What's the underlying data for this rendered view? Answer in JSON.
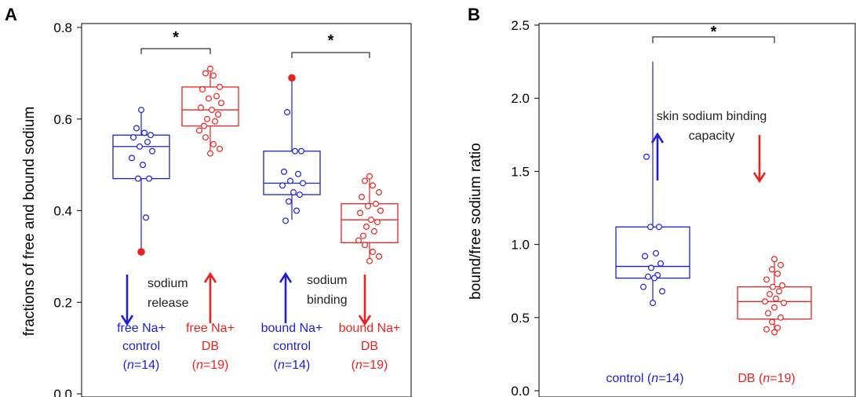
{
  "colors": {
    "control": "#1f1fd6",
    "db": "#e8231f",
    "axis": "#000000"
  },
  "chart_data": [
    {
      "panel_label": "A",
      "type": "box",
      "ylabel": "fractions of free and bound sodium",
      "ylim": [
        0.0,
        0.8
      ],
      "yticks": [
        "0.0",
        "0.2",
        "0.4",
        "0.6",
        "0.8"
      ],
      "yticks_values": [
        0.0,
        0.2,
        0.4,
        0.6,
        0.8
      ],
      "groups": [
        {
          "label_lines": [
            "free Na+",
            "control"
          ],
          "n_prefix": "(",
          "n_var": "n",
          "n_value": "=14)",
          "color_key": "control",
          "q1": 0.47,
          "median": 0.54,
          "q3": 0.565,
          "whisker_low": 0.31,
          "whisker_high": 0.62,
          "outlier_filled": 0.31,
          "points": [
            0.62,
            0.58,
            0.57,
            0.565,
            0.56,
            0.55,
            0.54,
            0.53,
            0.515,
            0.5,
            0.47,
            0.47,
            0.385,
            0.31
          ]
        },
        {
          "label_lines": [
            "free Na+",
            "DB"
          ],
          "n_prefix": "(",
          "n_var": "n",
          "n_value": "=19)",
          "color_key": "db",
          "q1": 0.585,
          "median": 0.62,
          "q3": 0.67,
          "whisker_low": 0.525,
          "whisker_high": 0.71,
          "points": [
            0.71,
            0.7,
            0.695,
            0.67,
            0.665,
            0.65,
            0.645,
            0.635,
            0.625,
            0.62,
            0.61,
            0.6,
            0.595,
            0.585,
            0.575,
            0.56,
            0.545,
            0.535,
            0.525
          ]
        },
        {
          "label_lines": [
            "bound Na+",
            "control"
          ],
          "n_prefix": "(",
          "n_var": "n",
          "n_value": "=14)",
          "color_key": "control",
          "q1": 0.435,
          "median": 0.46,
          "q3": 0.53,
          "whisker_low": 0.38,
          "whisker_high": 0.69,
          "outlier_filled": 0.69,
          "points": [
            0.69,
            0.615,
            0.53,
            0.53,
            0.485,
            0.48,
            0.465,
            0.46,
            0.455,
            0.44,
            0.435,
            0.42,
            0.4,
            0.378
          ]
        },
        {
          "label_lines": [
            "bound Na+",
            "DB"
          ],
          "n_prefix": "(",
          "n_var": "n",
          "n_value": "=19)",
          "color_key": "db",
          "q1": 0.33,
          "median": 0.38,
          "q3": 0.415,
          "whisker_low": 0.29,
          "whisker_high": 0.475,
          "points": [
            0.475,
            0.465,
            0.455,
            0.44,
            0.43,
            0.415,
            0.41,
            0.4,
            0.395,
            0.38,
            0.375,
            0.365,
            0.355,
            0.345,
            0.335,
            0.325,
            0.31,
            0.3,
            0.29
          ]
        }
      ],
      "significance": [
        {
          "groups": [
            0,
            1
          ],
          "text": "*"
        },
        {
          "groups": [
            2,
            3
          ],
          "text": "*"
        }
      ],
      "annotations": {
        "left": [
          "sodium",
          "release"
        ],
        "right": [
          "sodium",
          "binding"
        ]
      },
      "arrows": [
        {
          "group": 0,
          "dir": "down",
          "color_key": "control"
        },
        {
          "group": 1,
          "dir": "up",
          "color_key": "db"
        },
        {
          "group": 2,
          "dir": "up",
          "color_key": "control"
        },
        {
          "group": 3,
          "dir": "down",
          "color_key": "db"
        }
      ]
    },
    {
      "panel_label": "B",
      "type": "box",
      "ylabel": "bound/free  sodium  ratio",
      "ylim": [
        0.0,
        2.5
      ],
      "yticks": [
        "0.0",
        "0.5",
        "1.0",
        "1.5",
        "2.0",
        "2.5"
      ],
      "yticks_values": [
        0.0,
        0.5,
        1.0,
        1.5,
        2.0,
        2.5
      ],
      "groups": [
        {
          "label_prefix": "control (",
          "n_var": "n",
          "n_value": "=14)",
          "color_key": "control",
          "q1": 0.77,
          "median": 0.85,
          "q3": 1.12,
          "whisker_low": 0.6,
          "whisker_high": 2.25,
          "outlier_square": 2.25,
          "points": [
            1.6,
            1.12,
            1.12,
            0.94,
            0.92,
            0.87,
            0.84,
            0.79,
            0.78,
            0.77,
            0.71,
            0.68,
            0.6
          ]
        },
        {
          "label_prefix": "DB (",
          "n_var": "n",
          "n_value": "=19)",
          "color_key": "db",
          "q1": 0.49,
          "median": 0.61,
          "q3": 0.71,
          "whisker_low": 0.4,
          "whisker_high": 0.9,
          "points": [
            0.9,
            0.86,
            0.83,
            0.8,
            0.76,
            0.72,
            0.71,
            0.68,
            0.66,
            0.63,
            0.61,
            0.6,
            0.57,
            0.53,
            0.5,
            0.47,
            0.43,
            0.42,
            0.4
          ]
        }
      ],
      "significance": [
        {
          "groups": [
            0,
            1
          ],
          "text": "*"
        }
      ],
      "annotations": {
        "center": [
          "skin sodium binding",
          "capacity"
        ]
      },
      "arrows": [
        {
          "group": 0,
          "dir": "up",
          "color_key": "control"
        },
        {
          "group": 1,
          "dir": "down",
          "color_key": "db"
        }
      ]
    }
  ]
}
